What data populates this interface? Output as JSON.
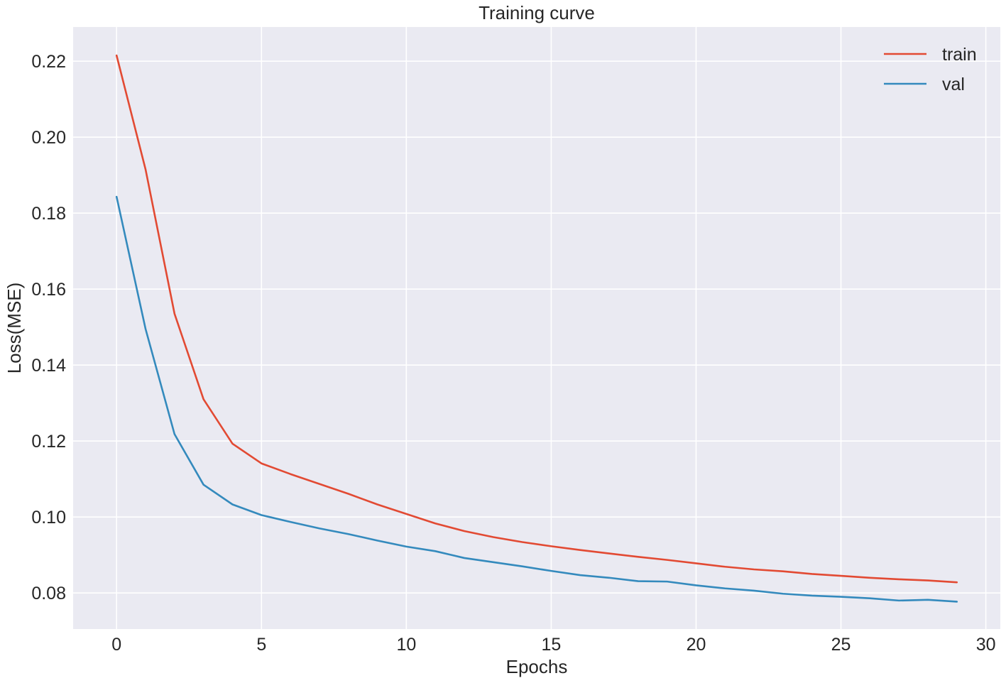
{
  "chart_data": {
    "type": "line",
    "title": "Training curve",
    "xlabel": "Epochs",
    "ylabel": "Loss(MSE)",
    "xlim": [
      -1.5,
      30.5
    ],
    "ylim": [
      0.0705,
      0.229
    ],
    "xticks": [
      0,
      5,
      10,
      15,
      20,
      25,
      30
    ],
    "xtick_labels": [
      "0",
      "5",
      "10",
      "15",
      "20",
      "25",
      "30"
    ],
    "yticks": [
      0.08,
      0.1,
      0.12,
      0.14,
      0.16,
      0.18,
      0.2,
      0.22
    ],
    "ytick_labels": [
      "0.08",
      "0.10",
      "0.12",
      "0.14",
      "0.16",
      "0.18",
      "0.20",
      "0.22"
    ],
    "grid": true,
    "legend": "top-right",
    "x": [
      0,
      1,
      2,
      3,
      4,
      5,
      6,
      7,
      8,
      9,
      10,
      11,
      12,
      13,
      14,
      15,
      16,
      17,
      18,
      19,
      20,
      21,
      22,
      23,
      24,
      25,
      26,
      27,
      28,
      29
    ],
    "series": [
      {
        "name": "train",
        "color": "#e24a33",
        "values": [
          0.2215,
          0.1915,
          0.1535,
          0.131,
          0.1193,
          0.1141,
          0.1113,
          0.1087,
          0.1061,
          0.1033,
          0.1008,
          0.0983,
          0.0963,
          0.0947,
          0.0934,
          0.0923,
          0.0913,
          0.0904,
          0.0895,
          0.0887,
          0.0878,
          0.0869,
          0.0862,
          0.0857,
          0.085,
          0.0845,
          0.084,
          0.0836,
          0.0833,
          0.0828
        ]
      },
      {
        "name": "val",
        "color": "#348abd",
        "values": [
          0.1843,
          0.1495,
          0.1218,
          0.1085,
          0.1033,
          0.1005,
          0.0987,
          0.097,
          0.0955,
          0.0938,
          0.0922,
          0.091,
          0.0892,
          0.0881,
          0.087,
          0.0858,
          0.0847,
          0.084,
          0.0831,
          0.083,
          0.082,
          0.0812,
          0.0806,
          0.0798,
          0.0793,
          0.079,
          0.0786,
          0.078,
          0.0782,
          0.0777
        ]
      }
    ]
  }
}
